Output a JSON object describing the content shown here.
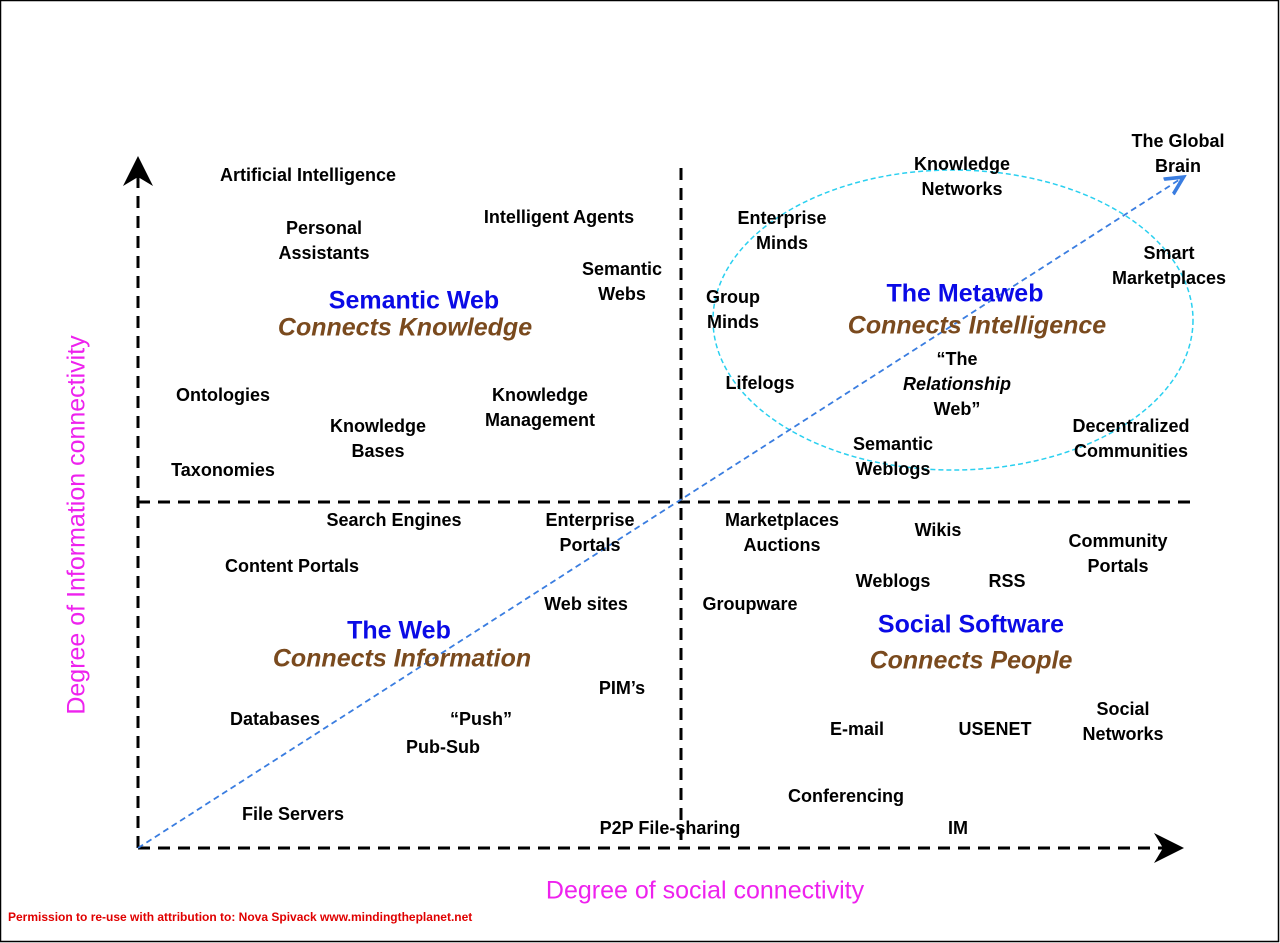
{
  "quadrants": [
    {
      "title": "Semantic Web",
      "subtitle": "Connects Knowledge"
    },
    {
      "title": "The Metaweb",
      "subtitle": "Connects Intelligence"
    },
    {
      "title": "The Web",
      "subtitle": "Connects Information"
    },
    {
      "title": "Social Software",
      "subtitle": "Connects People"
    }
  ],
  "items": [
    {
      "lines": [
        "Artificial Intelligence"
      ]
    },
    {
      "lines": [
        "Personal",
        "Assistants"
      ]
    },
    {
      "lines": [
        "Intelligent Agents"
      ]
    },
    {
      "lines": [
        "Semantic",
        "Webs"
      ]
    },
    {
      "lines": [
        "Ontologies"
      ]
    },
    {
      "lines": [
        "Knowledge",
        "Bases"
      ]
    },
    {
      "lines": [
        "Knowledge",
        "Management"
      ]
    },
    {
      "lines": [
        "Taxonomies"
      ]
    },
    {
      "lines": [
        "Knowledge",
        "Networks"
      ]
    },
    {
      "lines": [
        "The Global",
        "Brain"
      ]
    },
    {
      "lines": [
        "Enterprise",
        "Minds"
      ]
    },
    {
      "lines": [
        "Smart",
        "Marketplaces"
      ]
    },
    {
      "lines": [
        "Group",
        "Minds"
      ]
    },
    {
      "lines": [
        "Lifelogs"
      ]
    },
    {
      "lines": [
        "“The",
        "Relationship",
        "Web”"
      ]
    },
    {
      "lines": [
        "Semantic",
        "Weblogs"
      ]
    },
    {
      "lines": [
        "Decentralized",
        "Communities"
      ]
    },
    {
      "lines": [
        "Search Engines"
      ]
    },
    {
      "lines": [
        "Enterprise",
        "Portals"
      ]
    },
    {
      "lines": [
        "Content Portals"
      ]
    },
    {
      "lines": [
        "Web sites"
      ]
    },
    {
      "lines": [
        "PIM’s"
      ]
    },
    {
      "lines": [
        "Databases"
      ]
    },
    {
      "lines": [
        "“Push”"
      ]
    },
    {
      "lines": [
        "Pub-Sub"
      ]
    },
    {
      "lines": [
        "File Servers"
      ]
    },
    {
      "lines": [
        "P2P File-sharing"
      ]
    },
    {
      "lines": [
        "Marketplaces",
        "Auctions"
      ]
    },
    {
      "lines": [
        "Wikis"
      ]
    },
    {
      "lines": [
        "Community",
        "Portals"
      ]
    },
    {
      "lines": [
        "Weblogs"
      ]
    },
    {
      "lines": [
        "RSS"
      ]
    },
    {
      "lines": [
        "Groupware"
      ]
    },
    {
      "lines": [
        "E-mail"
      ]
    },
    {
      "lines": [
        "USENET"
      ]
    },
    {
      "lines": [
        "Social",
        "Networks"
      ]
    },
    {
      "lines": [
        "Conferencing"
      ]
    },
    {
      "lines": [
        "IM"
      ]
    }
  ],
  "x_axis_label": "Degree of social connectivity",
  "y_axis_label": "Degree of Information connectivity",
  "credit": "Permission to re-use with attribution to: Nova Spivack www.mindingtheplanet.net"
}
